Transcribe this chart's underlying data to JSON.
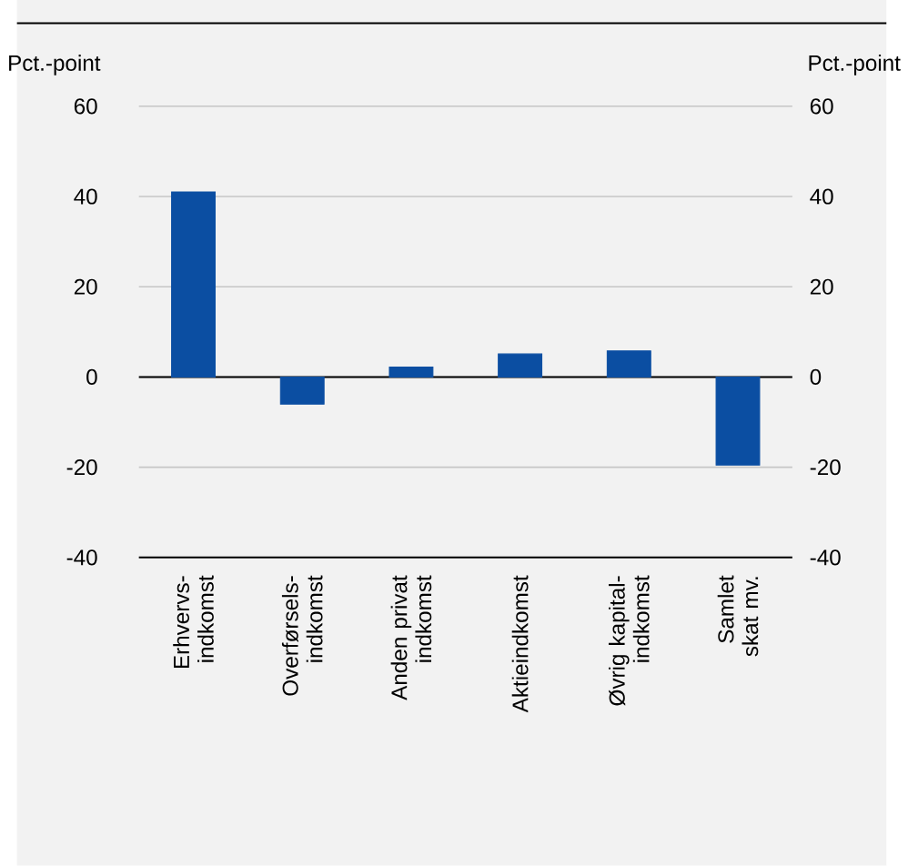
{
  "chart_data": {
    "type": "bar",
    "ylabel": "Pct.-point",
    "y2label": "Pct.-point",
    "categories": [
      "Erhvervs-indkomst",
      "Overførsels-indkomst",
      "Anden privat indkomst",
      "Aktieindkomst",
      "Øvrig kapital-indkomst",
      "Samlet skat mv."
    ],
    "values": [
      41,
      -6,
      2.2,
      5.1,
      5.8,
      -19.5
    ],
    "color": "#0b4ea2",
    "ylim": [
      -40,
      60
    ],
    "yticks": [
      -40,
      -20,
      0,
      20,
      40,
      60
    ],
    "y2lim": [
      -40,
      60
    ],
    "y2ticks": [
      -40,
      -20,
      0,
      20,
      40,
      60
    ],
    "grid": "y"
  }
}
